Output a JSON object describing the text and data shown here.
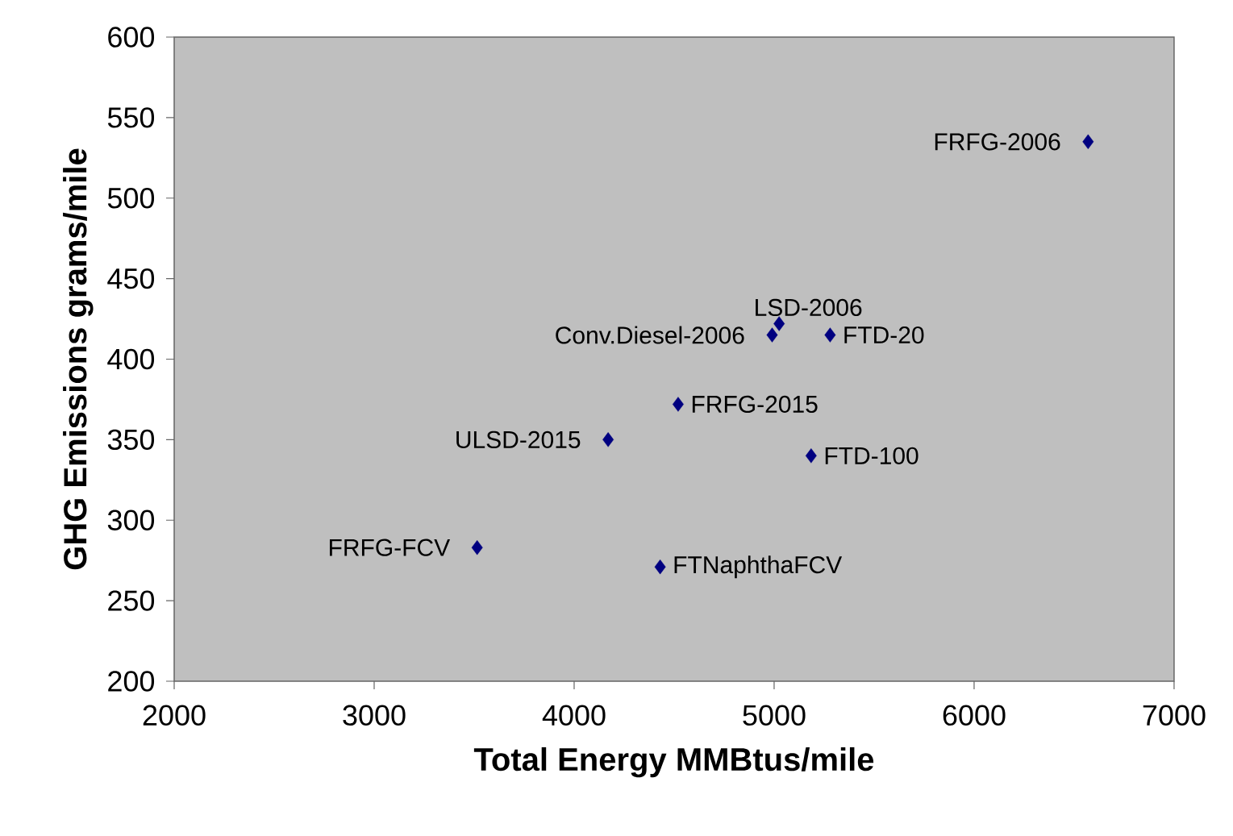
{
  "chart_data": {
    "type": "scatter",
    "xlabel": "Total Energy MMBtus/mile",
    "ylabel": "GHG Emissions grams/mile",
    "x": [
      6570,
      5025,
      4990,
      5280,
      4520,
      4170,
      5185,
      3515,
      4430
    ],
    "values": [
      535,
      422,
      415,
      415,
      372,
      350,
      340,
      283,
      271
    ],
    "color": "#000080",
    "annotations": [
      {
        "text": "FRFG-2006",
        "x": 6570,
        "y": 535
      },
      {
        "text": "LSD-2006",
        "x": 5025,
        "y": 422
      },
      {
        "text": "Conv.Diesel-2006",
        "x": 4990,
        "y": 415
      },
      {
        "text": "FTD-20",
        "x": 5280,
        "y": 415
      },
      {
        "text": "FRFG-2015",
        "x": 4520,
        "y": 372
      },
      {
        "text": "ULSD-2015",
        "x": 4170,
        "y": 350
      },
      {
        "text": "FTD-100",
        "x": 5185,
        "y": 340
      },
      {
        "text": "FRFG-FCV",
        "x": 3515,
        "y": 283
      },
      {
        "text": "FTNaphthaFCV",
        "x": 4430,
        "y": 271
      }
    ],
    "xlim": [
      2000,
      7000
    ],
    "ylim": [
      200,
      600
    ],
    "xticks": [
      2000,
      3000,
      4000,
      5000,
      6000,
      7000
    ],
    "yticks": [
      200,
      250,
      300,
      350,
      400,
      450,
      500,
      550,
      600
    ],
    "marker": "diamond"
  }
}
